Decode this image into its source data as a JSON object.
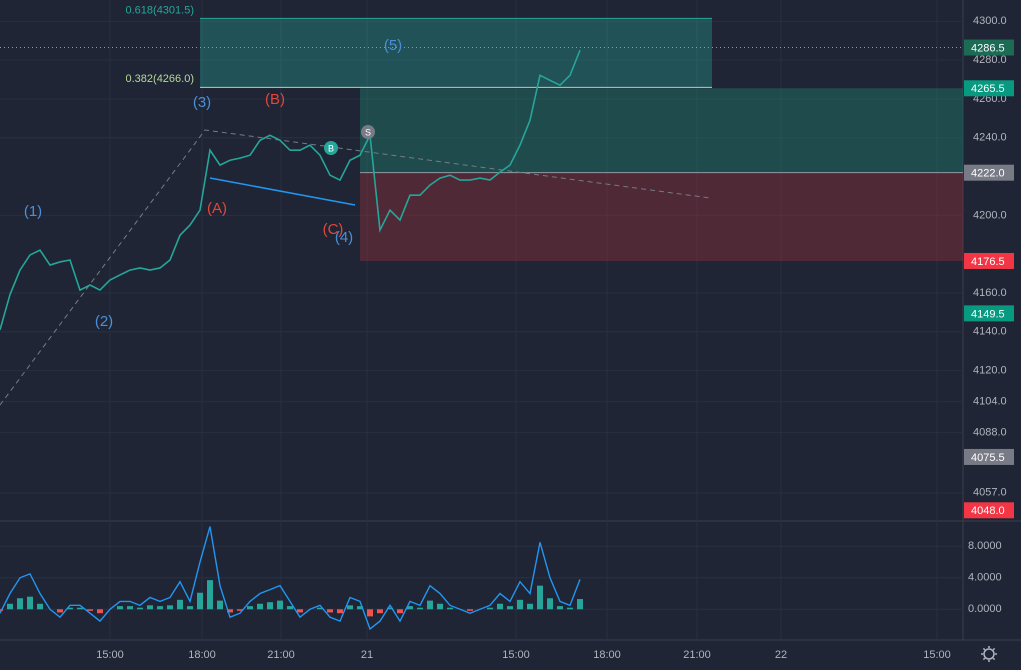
{
  "chart_data": {
    "type": "line",
    "x_axis_labels": [
      "15:00",
      "18:00",
      "21:00",
      "21",
      "15:00",
      "18:00",
      "21:00",
      "22",
      "15:00"
    ],
    "ylim": [
      4043,
      4311
    ],
    "yticks": [
      {
        "value": 4300,
        "label": "4300.0"
      },
      {
        "value": 4280,
        "label": "4280.0"
      },
      {
        "value": 4260,
        "label": "4260.0"
      },
      {
        "value": 4240,
        "label": "4240.0"
      },
      {
        "value": 4200,
        "label": "4200.0"
      },
      {
        "value": 4160,
        "label": "4160.0"
      },
      {
        "value": 4140,
        "label": "4140.0"
      },
      {
        "value": 4120,
        "label": "4120.0"
      },
      {
        "value": 4104,
        "label": "4104.0"
      },
      {
        "value": 4088,
        "label": "4088.0"
      },
      {
        "value": 4057,
        "label": "4057.0"
      }
    ],
    "grid": true,
    "price": {
      "color": "#26a69a",
      "values": [
        4141.0,
        4159.2,
        4171.8,
        4179.6,
        4182.1,
        4174.4,
        4176.0,
        4177.0,
        4161.5,
        4164.1,
        4161.5,
        4166.7,
        4169.3,
        4171.8,
        4172.9,
        4171.8,
        4172.9,
        4177.0,
        4189.8,
        4195.0,
        4202.7,
        4233.6,
        4225.9,
        4228.4,
        4229.5,
        4231.0,
        4238.7,
        4241.3,
        4238.7,
        4233.6,
        4233.6,
        4236.2,
        4231.0,
        4220.7,
        4218.2,
        4228.4,
        4231.0,
        4241.3,
        4192.4,
        4202.7,
        4197.6,
        4210.4,
        4210.4,
        4215.6,
        4219.2,
        4220.7,
        4218.2,
        4218.2,
        4219.2,
        4218.2,
        4222.3,
        4225.9,
        4236.2,
        4249.0,
        4272.2,
        4269.6,
        4267.1,
        4272.2,
        4285.1
      ]
    },
    "price_tags": [
      {
        "value": 4286.5,
        "label": "4286.5",
        "color": "#1b6b55"
      },
      {
        "value": 4265.5,
        "label": "4265.5",
        "color": "#089981"
      },
      {
        "value": 4222.0,
        "label": "4222.0",
        "color": "#787b86"
      },
      {
        "value": 4176.5,
        "label": "4176.5",
        "color": "#f23645"
      },
      {
        "value": 4149.5,
        "label": "4149.5",
        "color": "#089981"
      },
      {
        "value": 4075.5,
        "label": "4075.5",
        "color": "#787b86"
      },
      {
        "value": 4048.0,
        "label": "4048.0",
        "color": "#f23645"
      }
    ],
    "fib_levels": [
      {
        "value": 4301.5,
        "label": "0.618(4301.5)",
        "color": "#26a69a"
      },
      {
        "value": 4266.0,
        "label": "0.382(4266.0)",
        "color": "#b5d99c"
      }
    ],
    "wave_labels": [
      {
        "text": "(1)",
        "color": "#4a90d9"
      },
      {
        "text": "(2)",
        "color": "#4a90d9"
      },
      {
        "text": "(3)",
        "color": "#4a90d9"
      },
      {
        "text": "(4)",
        "color": "#4a90d9"
      },
      {
        "text": "(5)",
        "color": "#4a90d9"
      },
      {
        "text": "(A)",
        "color": "#e0483e"
      },
      {
        "text": "(B)",
        "color": "#e0483e"
      },
      {
        "text": "(C)",
        "color": "#e0483e"
      }
    ],
    "markers": [
      {
        "text": "B",
        "color": "#26a69a"
      },
      {
        "text": "S",
        "color": "#787b86"
      }
    ],
    "indicator": {
      "ylim": [
        -3.9,
        10.7
      ],
      "yticks": [
        {
          "value": 8,
          "label": "8.0000"
        },
        {
          "value": 4,
          "label": "4.0000"
        },
        {
          "value": 0,
          "label": "0.0000"
        }
      ],
      "line": {
        "color": "#2196f3",
        "values": [
          -0.5,
          2,
          4,
          4.5,
          2,
          0,
          -1,
          0.5,
          0.5,
          -0.5,
          -1.5,
          0,
          1,
          1,
          0.5,
          1.5,
          1,
          1.5,
          3.5,
          1,
          6,
          10.5,
          3,
          -1,
          -0.5,
          1,
          2,
          2.5,
          3,
          1,
          -1,
          0,
          0.5,
          -1,
          -1.5,
          1.5,
          1,
          -2.5,
          -1.5,
          0.5,
          -1.5,
          1,
          0.5,
          3,
          2,
          0.5,
          0,
          -0.5,
          0,
          0.5,
          2,
          1,
          3.5,
          2,
          8.5,
          4,
          1,
          0.5,
          3.8
        ]
      },
      "histogram": {
        "up_color": "#26a69a",
        "down_color": "#ef5350",
        "values": [
          -0.2,
          0.7,
          1.4,
          1.6,
          0.7,
          0,
          -0.4,
          0.2,
          0.2,
          -0.2,
          -0.5,
          0,
          0.4,
          0.4,
          0.2,
          0.5,
          0.4,
          0.5,
          1.2,
          0.4,
          2.1,
          3.7,
          1.1,
          -0.4,
          -0.2,
          0.4,
          0.7,
          0.9,
          1.1,
          0.4,
          -0.4,
          0,
          0.2,
          -0.4,
          -0.5,
          0.5,
          0.4,
          -0.9,
          -0.5,
          0.2,
          -0.5,
          0.4,
          0.2,
          1.1,
          0.7,
          0.2,
          0,
          -0.2,
          0,
          0.2,
          0.7,
          0.4,
          1.2,
          0.7,
          3,
          1.4,
          0.4,
          0.2,
          1.3
        ]
      }
    }
  }
}
